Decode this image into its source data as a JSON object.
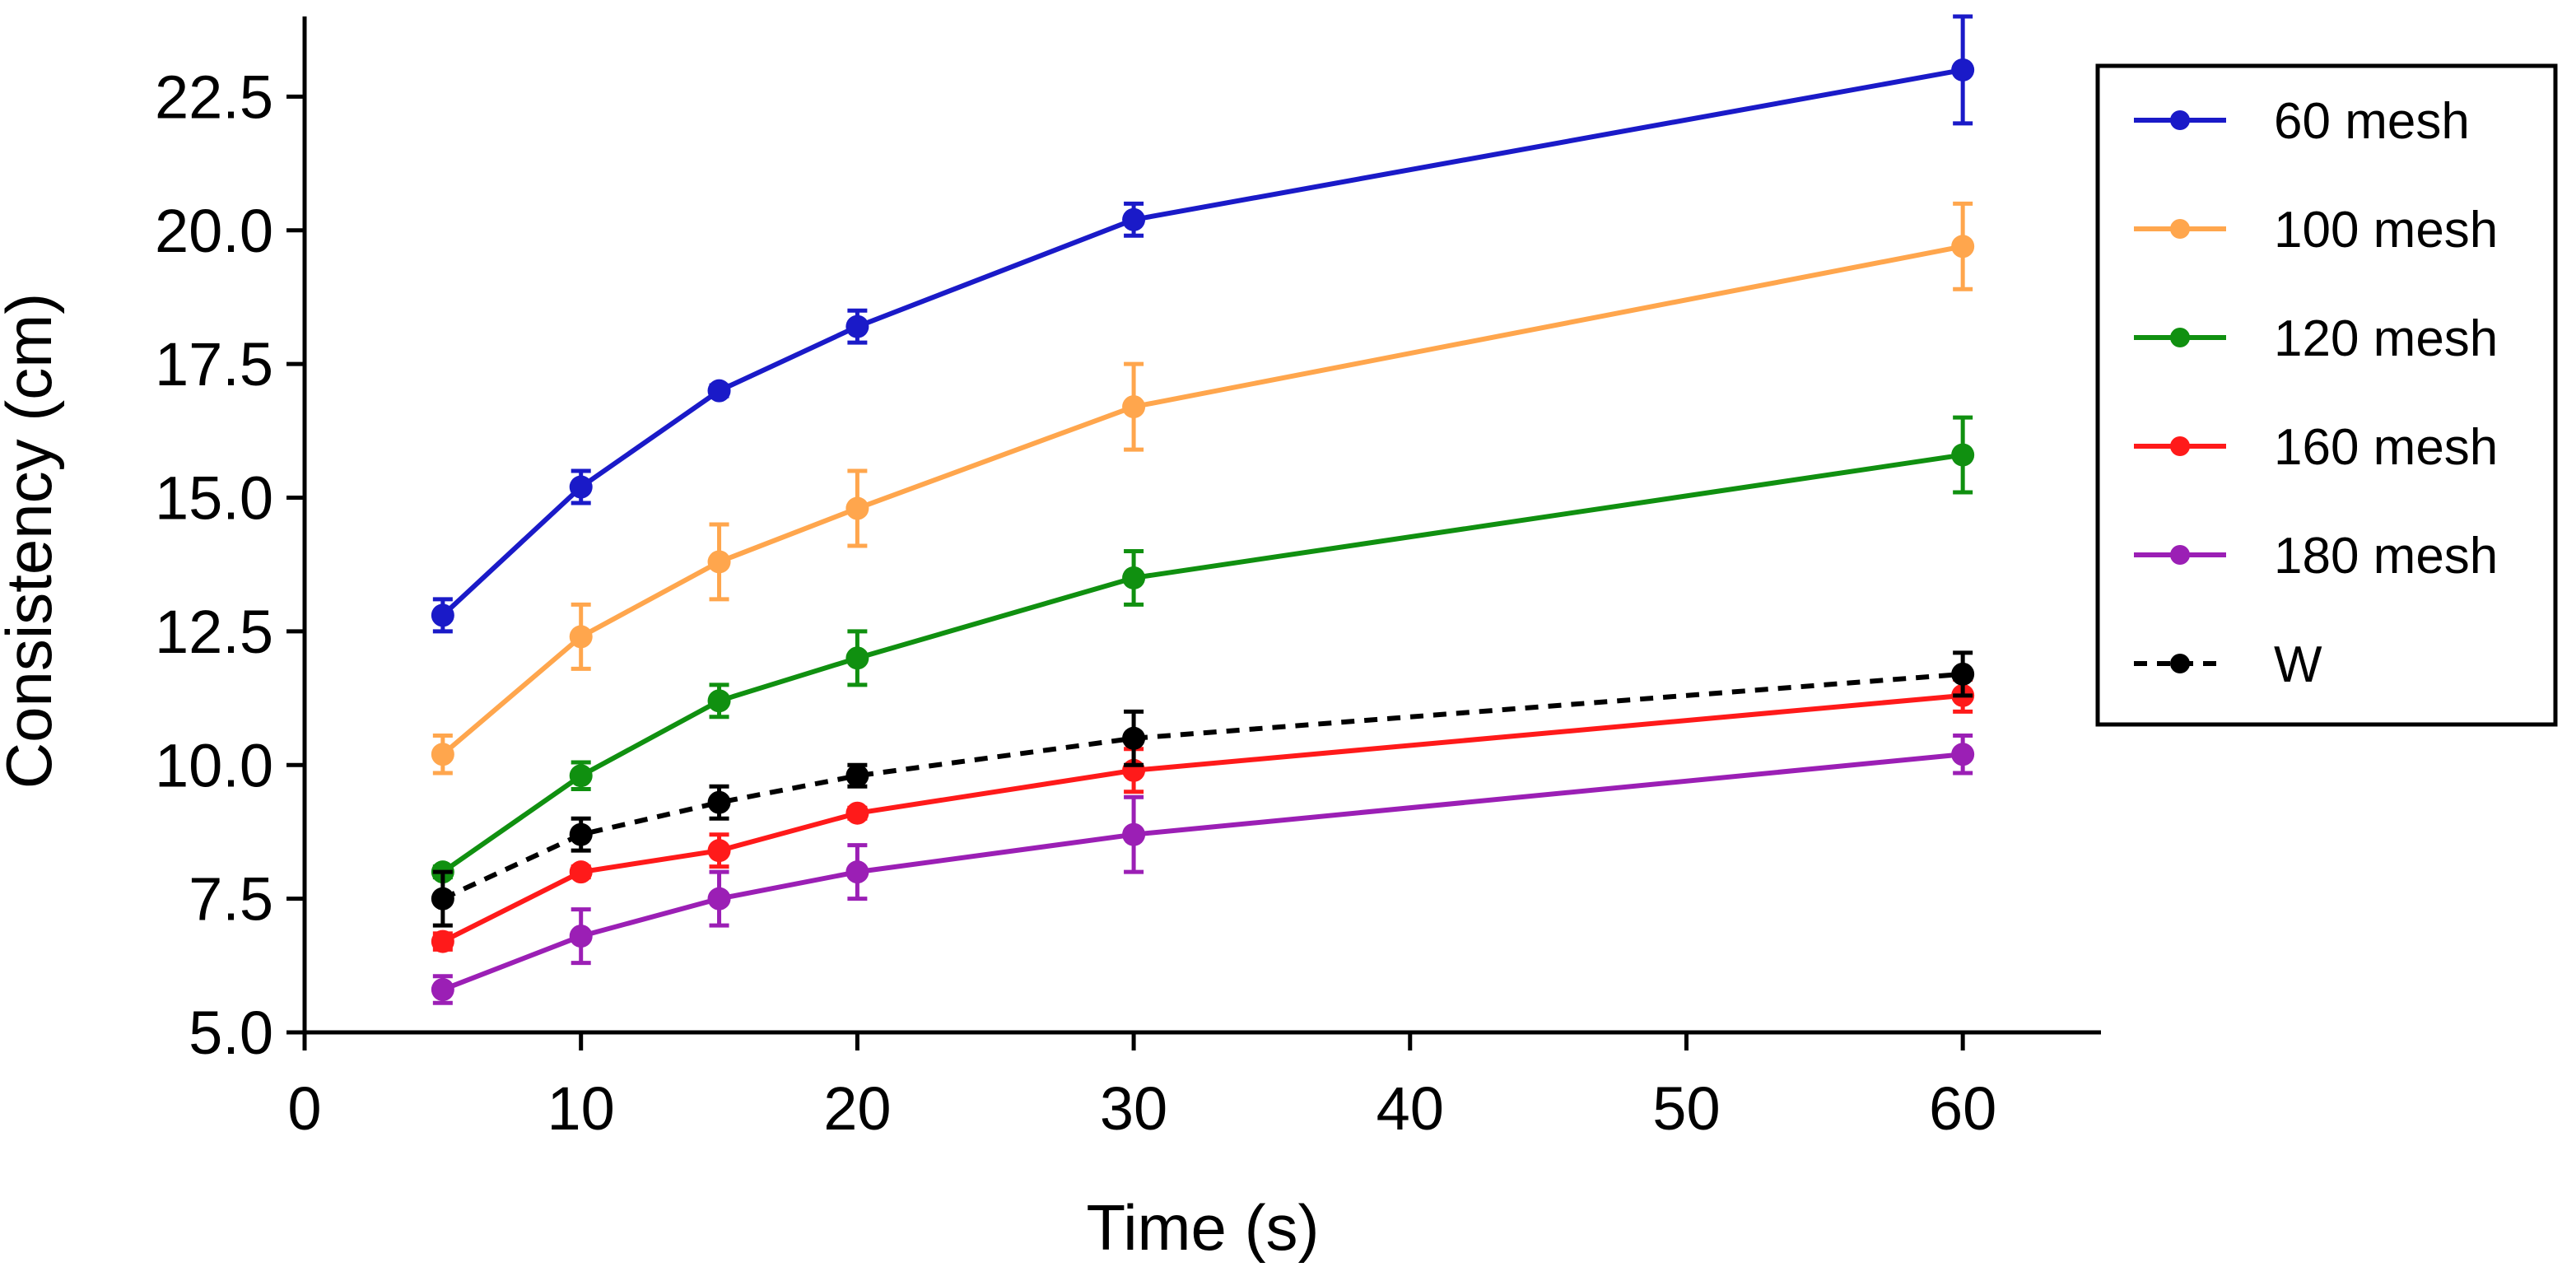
{
  "chart_data": {
    "type": "line",
    "title": "",
    "xlabel": "Time (s)",
    "ylabel": "Consistency (cm)",
    "xlim": [
      0,
      65
    ],
    "ylim": [
      5.0,
      24.0
    ],
    "xticks": [
      0,
      10,
      20,
      30,
      40,
      50,
      60
    ],
    "yticks": [
      5.0,
      7.5,
      10.0,
      12.5,
      15.0,
      17.5,
      20.0,
      22.5
    ],
    "xtick_labels": [
      "0",
      "10",
      "20",
      "30",
      "40",
      "50",
      "60"
    ],
    "ytick_labels": [
      "5.0",
      "7.5",
      "10.0",
      "12.5",
      "15.0",
      "17.5",
      "20.0",
      "22.5"
    ],
    "grid": false,
    "legend_position": "top-right",
    "x": [
      5,
      10,
      15,
      20,
      30,
      60
    ],
    "series": [
      {
        "name": "60 mesh",
        "color": "#1a1ac8",
        "dashed": false,
        "values": [
          12.8,
          15.2,
          17.0,
          18.2,
          20.2,
          23.0
        ],
        "errors": [
          0.3,
          0.3,
          0.1,
          0.3,
          0.3,
          1.0
        ]
      },
      {
        "name": "100 mesh",
        "color": "#ffa64d",
        "dashed": false,
        "values": [
          10.2,
          12.4,
          13.8,
          14.8,
          16.7,
          19.7
        ],
        "errors": [
          0.35,
          0.6,
          0.7,
          0.7,
          0.8,
          0.8
        ]
      },
      {
        "name": "120 mesh",
        "color": "#109010",
        "dashed": false,
        "values": [
          8.0,
          9.8,
          11.2,
          12.0,
          13.5,
          15.8
        ],
        "errors": [
          0.1,
          0.25,
          0.3,
          0.5,
          0.5,
          0.7
        ]
      },
      {
        "name": "160 mesh",
        "color": "#ff1a1a",
        "dashed": false,
        "values": [
          6.7,
          8.0,
          8.4,
          9.1,
          9.9,
          11.3
        ],
        "errors": [
          0.15,
          0.1,
          0.3,
          0.1,
          0.4,
          0.3
        ]
      },
      {
        "name": "180 mesh",
        "color": "#9b1fb5",
        "dashed": false,
        "values": [
          5.8,
          6.8,
          7.5,
          8.0,
          8.7,
          10.2
        ],
        "errors": [
          0.25,
          0.5,
          0.5,
          0.5,
          0.7,
          0.35
        ]
      },
      {
        "name": "W",
        "color": "#000000",
        "dashed": true,
        "values": [
          7.5,
          8.7,
          9.3,
          9.8,
          10.5,
          11.7
        ],
        "errors": [
          0.5,
          0.3,
          0.3,
          0.2,
          0.5,
          0.4
        ]
      }
    ]
  }
}
